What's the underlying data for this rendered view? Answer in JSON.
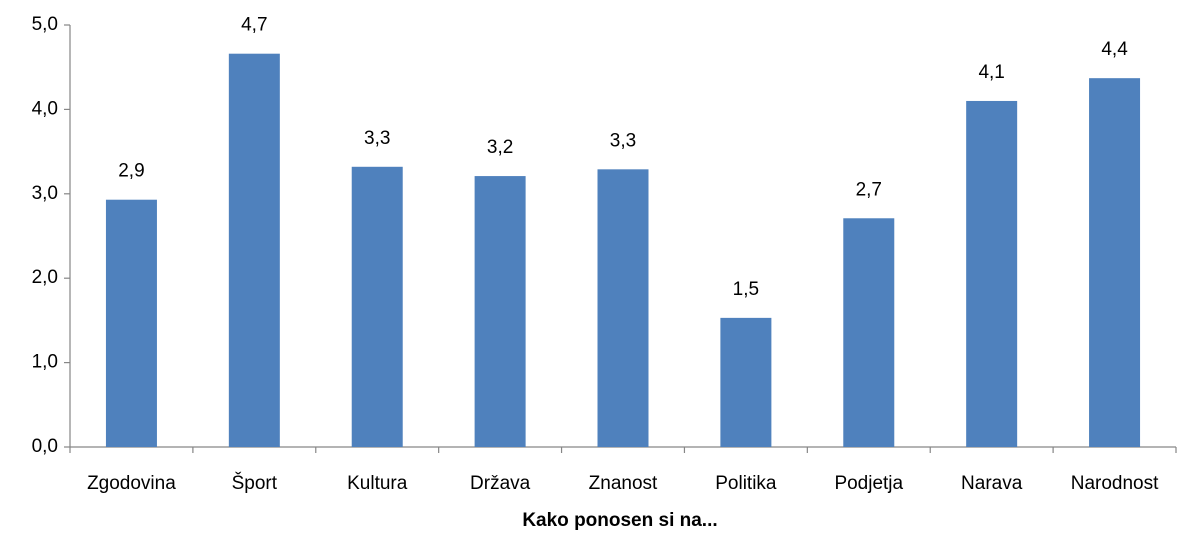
{
  "chart_data": {
    "type": "bar",
    "x_label": "Kako ponosen si na...",
    "categories": [
      "Zgodovina",
      "Šport",
      "Kultura",
      "Država",
      "Znanost",
      "Politika",
      "Podjetja",
      "Narava",
      "Narodnost"
    ],
    "values": [
      2.93,
      4.66,
      3.32,
      3.21,
      3.29,
      1.53,
      2.71,
      4.1,
      4.37
    ],
    "value_labels": [
      "2,9",
      "4,7",
      "3,3",
      "3,2",
      "3,3",
      "1,5",
      "2,7",
      "4,1",
      "4,4"
    ],
    "color": "#4f81bd",
    "ylim": [
      0,
      5
    ],
    "yticks": [
      {
        "value": 0,
        "label": "0,0"
      },
      {
        "value": 1,
        "label": "1,0"
      },
      {
        "value": 2,
        "label": "2,0"
      },
      {
        "value": 3,
        "label": "3,0"
      },
      {
        "value": 4,
        "label": "4,0"
      },
      {
        "value": 5,
        "label": "5,0"
      }
    ],
    "grid": false
  }
}
